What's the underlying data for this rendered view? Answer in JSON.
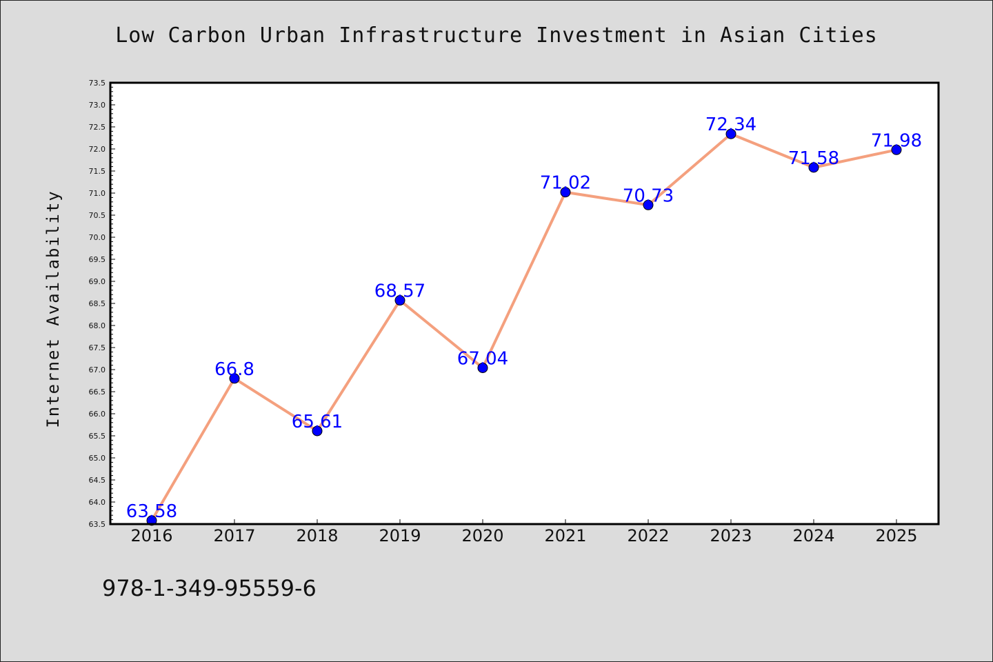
{
  "chart_data": {
    "type": "line",
    "title": "Low Carbon Urban Infrastructure Investment in Asian Cities",
    "xlabel": "",
    "ylabel": "Internet Availability",
    "categories": [
      "2016",
      "2017",
      "2018",
      "2019",
      "2020",
      "2021",
      "2022",
      "2023",
      "2024",
      "2025"
    ],
    "series": [
      {
        "values": [
          63.58,
          66.8,
          65.61,
          68.57,
          67.04,
          71.02,
          70.73,
          72.34,
          71.58,
          71.98
        ],
        "labels": [
          "63.58",
          "66.8",
          "65.61",
          "68.57",
          "67.04",
          "71.02",
          "70.73",
          "72.34",
          "71.58",
          "71.98"
        ],
        "line_color": "#f4a07e",
        "marker_color": "#0000ff"
      }
    ],
    "ylim": [
      63.5,
      73.5
    ],
    "y_ticks": [
      "63.5",
      "64.0",
      "64.5",
      "65.0",
      "65.5",
      "66.0",
      "66.5",
      "67.0",
      "67.5",
      "68.0",
      "68.5",
      "69.0",
      "69.5",
      "70.0",
      "70.5",
      "71.0",
      "71.5",
      "72.0",
      "72.5",
      "73.0",
      "73.5"
    ],
    "y_minor_step": 0.1,
    "grid": false,
    "legend": "none",
    "label_color": "#0000ff"
  },
  "footer": {
    "isbn": "978-1-349-95559-6"
  }
}
